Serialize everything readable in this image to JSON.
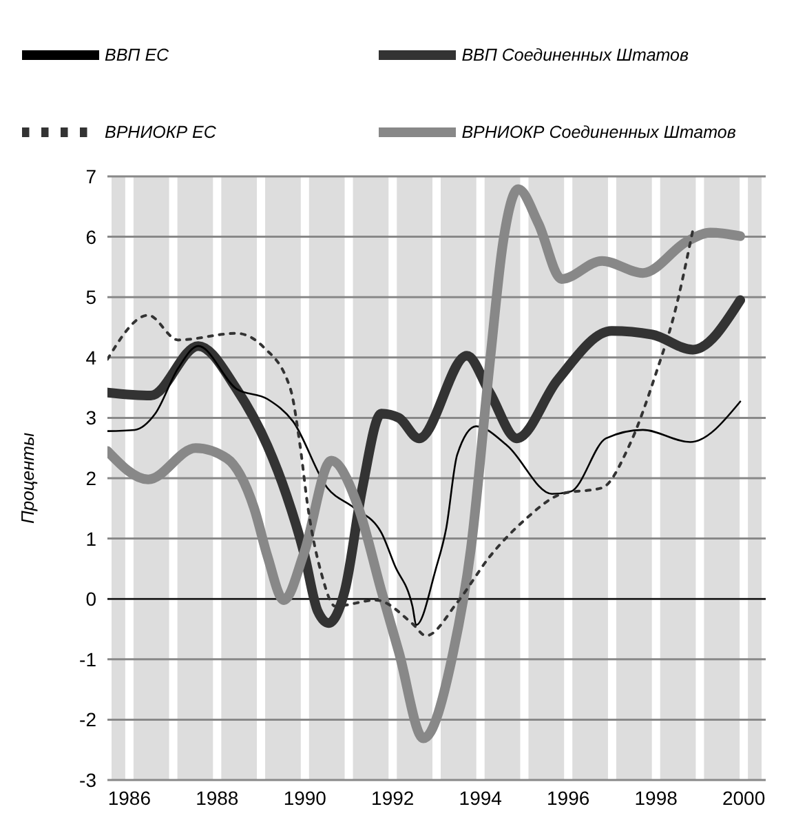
{
  "chart_data": {
    "type": "line",
    "ylabel": "Проценты",
    "legend": "top",
    "grid": true,
    "marker": "none",
    "xlim": [
      1985.5,
      2000.5
    ],
    "ylim": [
      -3,
      7
    ],
    "yticks": [
      -3,
      -2,
      -1,
      0,
      1,
      2,
      3,
      4,
      5,
      6,
      7
    ],
    "xticks": [
      1986,
      {
        "value": 1987,
        "label": null
      },
      1988,
      {
        "value": 1989,
        "label": null
      },
      1990,
      {
        "value": 1991,
        "label": null
      },
      1992,
      {
        "value": 1993,
        "label": null
      },
      1994,
      {
        "value": 1995,
        "label": null
      },
      1996,
      {
        "value": 1997,
        "label": null
      },
      1998,
      {
        "value": 1999,
        "label": null
      },
      2000
    ],
    "series": [
      {
        "name": "ВВП Соединенных Штатов",
        "color": "#333333",
        "line_style": "solid",
        "x": [
          1985.5,
          1986.49,
          1987.57,
          1988.44,
          1989.15,
          1989.58,
          1989.98,
          1990.29,
          1990.54,
          1990.91,
          1991.31,
          1991.74,
          1992.14,
          1992.6,
          1993.69,
          1994.21,
          1994.83,
          1995.75,
          1996.99,
          1997.91,
          1998.84,
          1999.92
        ],
        "values": [
          3.42,
          3.37,
          4.19,
          3.48,
          2.53,
          1.72,
          0.76,
          -0.2,
          -0.4,
          0.14,
          1.84,
          3.07,
          3.0,
          2.66,
          4.03,
          3.42,
          2.66,
          3.62,
          4.44,
          4.38,
          4.13,
          4.95
        ]
      },
      {
        "name": "ВВП ЕС",
        "color": "#000000",
        "line_style": "solid",
        "x": [
          1985.5,
          1986.12,
          1986.59,
          1987.11,
          1987.57,
          1988.44,
          1989.15,
          1989.73,
          1990.51,
          1991.12,
          1991.74,
          1992.05,
          1992.45,
          1992.54,
          1992.98,
          1993.22,
          1993.47,
          1993.9,
          1994.61,
          1995.63,
          1996.06,
          1996.86,
          1997.7,
          1998.78,
          1999.92
        ],
        "values": [
          2.78,
          2.8,
          3.07,
          3.82,
          4.19,
          3.48,
          3.31,
          2.94,
          1.84,
          1.51,
          1.1,
          0.55,
          -0.12,
          -0.43,
          0.49,
          1.17,
          2.39,
          2.86,
          2.54,
          1.74,
          1.78,
          2.66,
          2.8,
          2.6,
          3.27
        ]
      },
      {
        "name": "ВРНИОКР Соединенных Штатов",
        "color": "#888888",
        "line_style": "solid",
        "x": [
          1985.5,
          1986.43,
          1987.51,
          1988.22,
          1988.84,
          1989.15,
          1989.52,
          1989.98,
          1990.6,
          1991.22,
          1991.74,
          1992.14,
          1992.7,
          1993.38,
          1993.78,
          1994.21,
          1994.52,
          1994.86,
          1995.32,
          1995.85,
          1996.77,
          1997.7,
          1998.72,
          1999.24,
          1999.92
        ],
        "values": [
          2.45,
          1.98,
          2.5,
          2.33,
          1.51,
          0.7,
          -0.02,
          0.76,
          2.29,
          1.51,
          0.14,
          -0.88,
          -2.31,
          -0.88,
          0.82,
          3.89,
          5.93,
          6.79,
          6.22,
          5.3,
          5.6,
          5.4,
          5.93,
          6.07,
          6.01
        ]
      },
      {
        "name": "ВРНИОКР ЕС",
        "color": "#333333",
        "line_style": "dotted",
        "x": [
          1985.5,
          1986.43,
          1987.11,
          1988.44,
          1989.06,
          1989.67,
          1989.89,
          1990.07,
          1990.38,
          1990.69,
          1991.62,
          1992.45,
          1992.76,
          1993.47,
          1994.21,
          1995.01,
          1995.85,
          1996.77,
          1997.39,
          1998.01,
          1998.41,
          1998.84
        ],
        "values": [
          3.97,
          4.7,
          4.29,
          4.4,
          4.17,
          3.48,
          2.54,
          1.51,
          0.41,
          -0.12,
          -0.02,
          -0.41,
          -0.61,
          -0.06,
          0.7,
          1.31,
          1.74,
          1.84,
          2.54,
          3.76,
          4.7,
          6.11
        ]
      }
    ]
  }
}
